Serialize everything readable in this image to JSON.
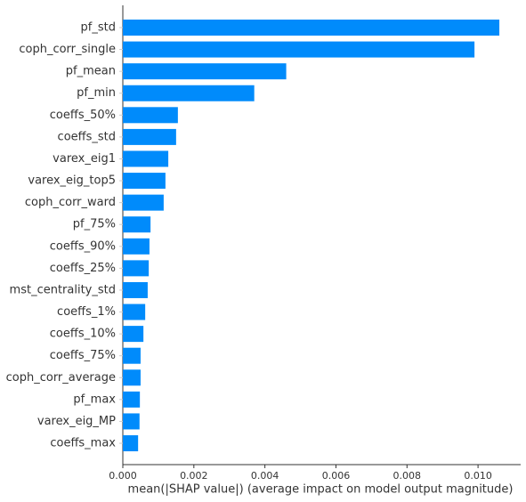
{
  "chart_data": {
    "type": "bar",
    "orientation": "horizontal",
    "x_label": "mean(|SHAP value|) (average impact on model output magnitude)",
    "categories": [
      "pf_std",
      "coph_corr_single",
      "pf_mean",
      "pf_min",
      "coeffs_50%",
      "coeffs_std",
      "varex_eig1",
      "varex_eig_top5",
      "coph_corr_ward",
      "pf_75%",
      "coeffs_90%",
      "coeffs_25%",
      "mst_centrality_std",
      "coeffs_1%",
      "coeffs_10%",
      "coeffs_75%",
      "coph_corr_average",
      "pf_max",
      "varex_eig_MP",
      "coeffs_max"
    ],
    "values": [
      0.0106,
      0.0099,
      0.0046,
      0.0037,
      0.00155,
      0.0015,
      0.00128,
      0.0012,
      0.00115,
      0.00078,
      0.00075,
      0.00073,
      0.0007,
      0.00063,
      0.00058,
      0.0005,
      0.0005,
      0.00048,
      0.00047,
      0.00043
    ],
    "color": "#008bfb",
    "xlim": [
      0,
      0.0112
    ],
    "xticks": [
      {
        "value": 0,
        "label": "0.000"
      },
      {
        "value": 0.002,
        "label": "0.002"
      },
      {
        "value": 0.004,
        "label": "0.004"
      },
      {
        "value": 0.006,
        "label": "0.006"
      },
      {
        "value": 0.008,
        "label": "0.008"
      },
      {
        "value": 0.01,
        "label": "0.010"
      }
    ],
    "grid": false
  }
}
